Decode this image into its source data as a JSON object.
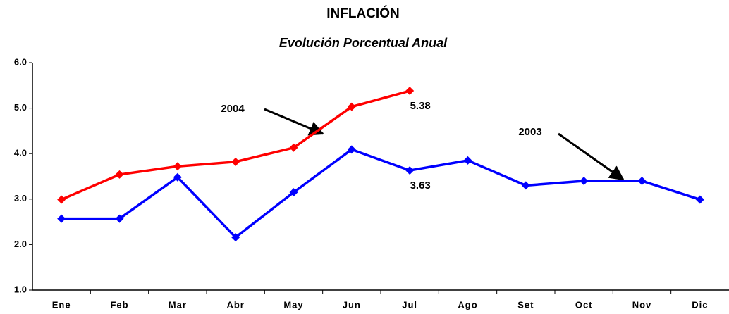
{
  "chart_data": {
    "type": "line",
    "title": "INFLACIÓN",
    "subtitle": "Evolución Porcentual Anual",
    "categories": [
      "Ene",
      "Feb",
      "Mar",
      "Abr",
      "May",
      "Jun",
      "Jul",
      "Ago",
      "Set",
      "Oct",
      "Nov",
      "Dic"
    ],
    "series": [
      {
        "name": "2004",
        "color": "#ff0000",
        "values": [
          2.99,
          3.54,
          3.72,
          3.82,
          4.13,
          5.03,
          5.38,
          null,
          null,
          null,
          null,
          null
        ],
        "value_labels": [
          null,
          null,
          null,
          null,
          null,
          null,
          "5.38",
          null,
          null,
          null,
          null,
          null
        ]
      },
      {
        "name": "2003",
        "color": "#0000ff",
        "values": [
          2.57,
          2.57,
          3.48,
          2.16,
          3.15,
          4.09,
          3.63,
          3.85,
          3.3,
          3.4,
          3.4,
          2.99
        ],
        "value_labels": [
          null,
          null,
          null,
          null,
          null,
          null,
          "3.63",
          null,
          null,
          null,
          null,
          null
        ]
      }
    ],
    "ylim": [
      1,
      6
    ],
    "yticks": [
      {
        "value": 1,
        "label": "1.0"
      },
      {
        "value": 2,
        "label": "2.0"
      },
      {
        "value": 3,
        "label": "3.0"
      },
      {
        "value": 4,
        "label": "4.0"
      },
      {
        "value": 5,
        "label": "5.0"
      },
      {
        "value": 6,
        "label": "6.0"
      }
    ],
    "grid": false
  }
}
